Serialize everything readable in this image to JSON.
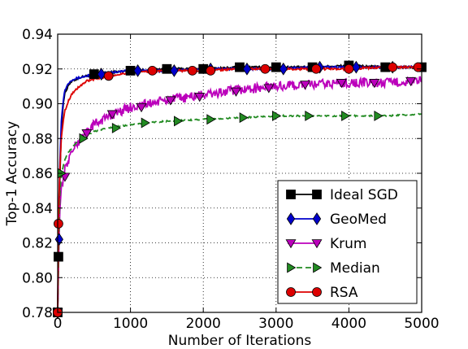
{
  "chart_data": {
    "type": "line",
    "title": "",
    "xlabel": "Number of Iterations",
    "ylabel": "Top-1 Accuracy",
    "xlim": [
      0,
      5000
    ],
    "ylim": [
      0.78,
      0.94
    ],
    "xticks": [
      0,
      1000,
      2000,
      3000,
      4000,
      5000
    ],
    "yticks": [
      0.78,
      0.8,
      0.82,
      0.84,
      0.86,
      0.88,
      0.9,
      0.92,
      0.94
    ],
    "xtick_labels": [
      "0",
      "1000",
      "2000",
      "3000",
      "4000",
      "5000"
    ],
    "ytick_labels": [
      "0.78",
      "0.80",
      "0.82",
      "0.84",
      "0.86",
      "0.88",
      "0.90",
      "0.92",
      "0.94"
    ],
    "grid": true,
    "legend_position": "lower-right",
    "series": [
      {
        "name": "Ideal SGD",
        "color": "#000000",
        "linestyle": "solid",
        "marker": "square",
        "x": [
          0,
          10,
          25,
          50,
          75,
          100,
          150,
          200,
          300,
          400,
          500,
          700,
          1000,
          1500,
          2000,
          2500,
          3000,
          3500,
          4000,
          4500,
          5000
        ],
        "y": [
          0.78,
          0.812,
          0.85,
          0.885,
          0.9,
          0.906,
          0.911,
          0.913,
          0.915,
          0.916,
          0.917,
          0.918,
          0.919,
          0.92,
          0.92,
          0.921,
          0.921,
          0.921,
          0.922,
          0.921,
          0.921
        ],
        "markers_x": [
          0,
          10,
          500,
          1000,
          1500,
          2000,
          2500,
          3000,
          3500,
          4000,
          4500,
          5000
        ],
        "markers_y": [
          0.78,
          0.812,
          0.917,
          0.919,
          0.92,
          0.92,
          0.921,
          0.921,
          0.921,
          0.922,
          0.921,
          0.921
        ]
      },
      {
        "name": "GeoMed",
        "color": "#0000cc",
        "linestyle": "solid",
        "marker": "diamond",
        "x": [
          0,
          10,
          25,
          50,
          75,
          100,
          150,
          200,
          300,
          400,
          500,
          700,
          1000,
          1500,
          2000,
          2500,
          3000,
          3500,
          4000,
          4500,
          5000
        ],
        "y": [
          0.78,
          0.822,
          0.86,
          0.89,
          0.902,
          0.908,
          0.912,
          0.914,
          0.915,
          0.916,
          0.917,
          0.918,
          0.919,
          0.919,
          0.92,
          0.92,
          0.92,
          0.921,
          0.921,
          0.921,
          0.921
        ],
        "markers_x": [
          0,
          20,
          600,
          1100,
          1600,
          2100,
          2600,
          3100,
          3600,
          4100,
          4600
        ],
        "markers_y": [
          0.78,
          0.822,
          0.917,
          0.919,
          0.919,
          0.92,
          0.92,
          0.92,
          0.921,
          0.921,
          0.921
        ]
      },
      {
        "name": "Krum",
        "color": "#bb00bb",
        "linestyle": "solid",
        "marker": "triangle-down",
        "x": [
          0,
          25,
          50,
          100,
          150,
          200,
          300,
          400,
          500,
          700,
          1000,
          1500,
          2000,
          2500,
          3000,
          3500,
          4000,
          4500,
          5000
        ],
        "y": [
          0.78,
          0.835,
          0.852,
          0.862,
          0.868,
          0.873,
          0.879,
          0.884,
          0.888,
          0.893,
          0.898,
          0.902,
          0.905,
          0.908,
          0.91,
          0.911,
          0.912,
          0.912,
          0.913
        ],
        "markers_x": [
          0,
          100,
          400,
          750,
          1150,
          1550,
          1950,
          2450,
          2900,
          3400,
          3900,
          4350,
          4850
        ],
        "markers_y": [
          0.78,
          0.858,
          0.883,
          0.894,
          0.898,
          0.902,
          0.904,
          0.907,
          0.909,
          0.911,
          0.912,
          0.912,
          0.913
        ]
      },
      {
        "name": "Median",
        "color": "#228b22",
        "linestyle": "dashed",
        "marker": "triangle-right",
        "x": [
          0,
          25,
          50,
          100,
          150,
          200,
          300,
          400,
          500,
          700,
          1000,
          1500,
          2000,
          2500,
          3000,
          3500,
          4000,
          4500,
          5000
        ],
        "y": [
          0.78,
          0.845,
          0.86,
          0.868,
          0.872,
          0.875,
          0.879,
          0.882,
          0.884,
          0.886,
          0.888,
          0.89,
          0.891,
          0.892,
          0.893,
          0.893,
          0.893,
          0.893,
          0.894
        ],
        "markers_x": [
          0,
          50,
          350,
          800,
          1200,
          1650,
          2100,
          2550,
          3000,
          3450,
          3950,
          4400
        ],
        "markers_y": [
          0.78,
          0.86,
          0.88,
          0.886,
          0.889,
          0.89,
          0.891,
          0.892,
          0.893,
          0.893,
          0.893,
          0.893
        ]
      },
      {
        "name": "RSA",
        "color": "#dd0000",
        "linestyle": "solid",
        "marker": "circle",
        "x": [
          0,
          10,
          25,
          50,
          75,
          100,
          150,
          200,
          300,
          400,
          500,
          700,
          1000,
          1500,
          2000,
          2500,
          3000,
          3500,
          4000,
          4500,
          5000
        ],
        "y": [
          0.78,
          0.831,
          0.858,
          0.88,
          0.89,
          0.896,
          0.902,
          0.906,
          0.91,
          0.913,
          0.914,
          0.916,
          0.918,
          0.919,
          0.919,
          0.92,
          0.92,
          0.92,
          0.92,
          0.921,
          0.921
        ],
        "markers_x": [
          0,
          10,
          700,
          1300,
          1850,
          2100,
          2850,
          3550,
          4000,
          4600,
          4950
        ],
        "markers_y": [
          0.78,
          0.831,
          0.916,
          0.919,
          0.919,
          0.919,
          0.92,
          0.92,
          0.92,
          0.921,
          0.921
        ]
      }
    ]
  }
}
